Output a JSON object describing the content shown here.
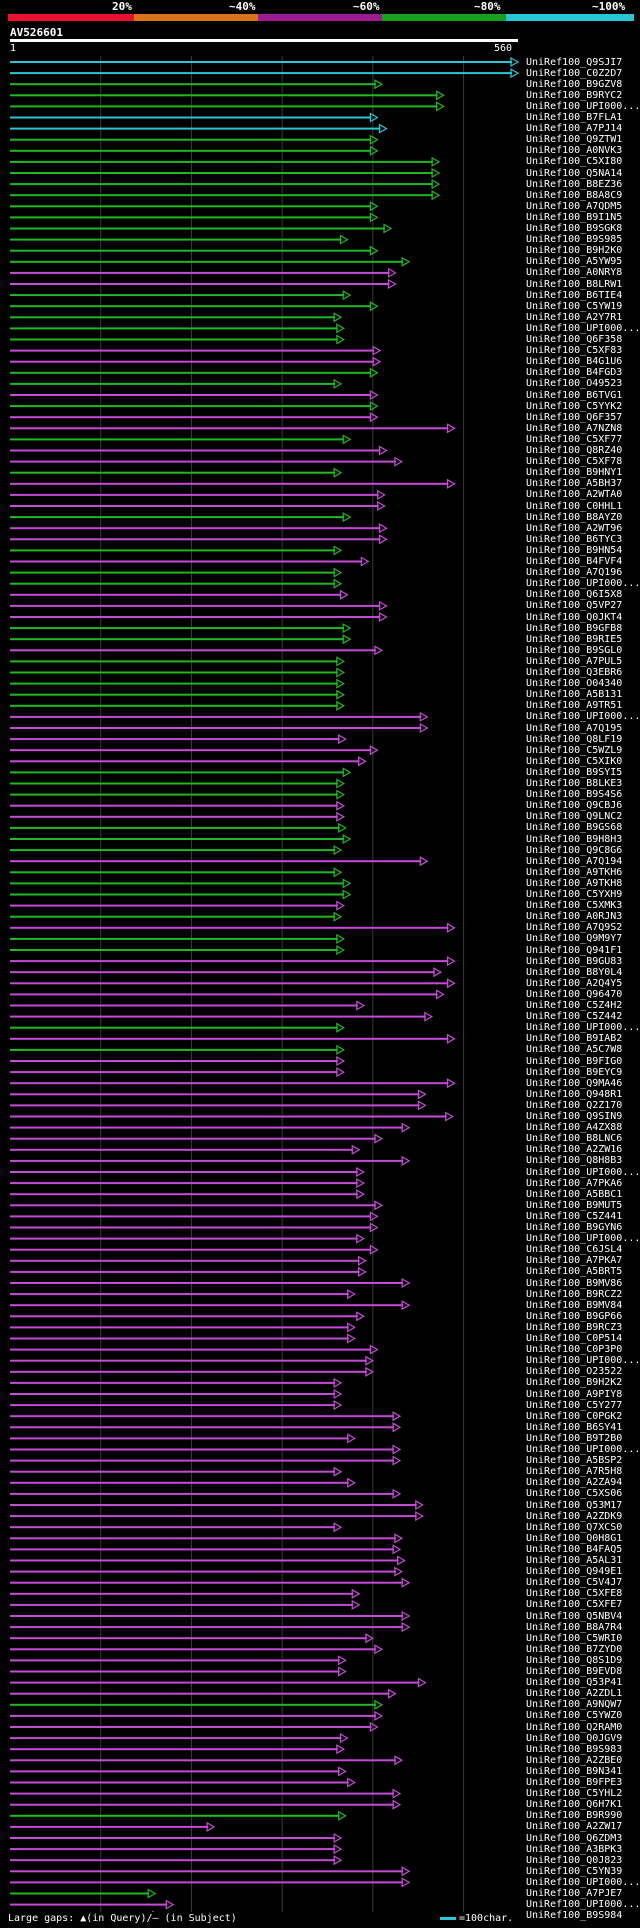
{
  "scale": {
    "labels": [
      "20%",
      "~40%",
      "~60%",
      "~80%",
      "~100%"
    ],
    "colors": [
      "#e8102c",
      "#d9741a",
      "#9b1c8f",
      "#17a01c",
      "#29c6d4"
    ]
  },
  "query": {
    "name": "AV526601",
    "start": "1",
    "end": "560"
  },
  "hits": [
    {
      "label": "UniRef100_Q9SJI7",
      "len": 560,
      "color": "cyan"
    },
    {
      "label": "UniRef100_C0Z2D7",
      "len": 560,
      "color": "cyan"
    },
    {
      "label": "UniRef100_B9GZV8",
      "len": 410,
      "color": "green"
    },
    {
      "label": "UniRef100_B9RYC2",
      "len": 478,
      "color": "green"
    },
    {
      "label": "UniRef100_UPI000...",
      "len": 478,
      "color": "green"
    },
    {
      "label": "UniRef100_B7FLA1",
      "len": 405,
      "color": "cyan"
    },
    {
      "label": "UniRef100_A7PJ14",
      "len": 415,
      "color": "cyan"
    },
    {
      "label": "UniRef100_Q9ZTW1",
      "len": 405,
      "color": "green"
    },
    {
      "label": "UniRef100_A0NVK3",
      "len": 405,
      "color": "green"
    },
    {
      "label": "UniRef100_C5XI80",
      "len": 473,
      "color": "green"
    },
    {
      "label": "UniRef100_Q5NA14",
      "len": 473,
      "color": "green"
    },
    {
      "label": "UniRef100_B8EZ36",
      "len": 473,
      "color": "green"
    },
    {
      "label": "UniRef100_B8A8C9",
      "len": 473,
      "color": "green"
    },
    {
      "label": "UniRef100_A7QDM5",
      "len": 405,
      "color": "green"
    },
    {
      "label": "UniRef100_B9I1N5",
      "len": 405,
      "color": "green"
    },
    {
      "label": "UniRef100_B9SGK8",
      "len": 420,
      "color": "green"
    },
    {
      "label": "UniRef100_B9S985",
      "len": 372,
      "color": "green"
    },
    {
      "label": "UniRef100_B9H2K0",
      "len": 405,
      "color": "green"
    },
    {
      "label": "UniRef100_A5YW95",
      "len": 440,
      "color": "green"
    },
    {
      "label": "UniRef100_A0NRY8",
      "len": 425,
      "color": "magenta"
    },
    {
      "label": "UniRef100_B8LRW1",
      "len": 425,
      "color": "magenta"
    },
    {
      "label": "UniRef100_B6TIE4",
      "len": 375,
      "color": "green"
    },
    {
      "label": "UniRef100_C5YW19",
      "len": 405,
      "color": "green"
    },
    {
      "label": "UniRef100_A2Y7R1",
      "len": 365,
      "color": "green"
    },
    {
      "label": "UniRef100_UPI000...",
      "len": 368,
      "color": "green"
    },
    {
      "label": "UniRef100_Q6F358",
      "len": 368,
      "color": "green"
    },
    {
      "label": "UniRef100_C5XF83",
      "len": 408,
      "color": "magenta"
    },
    {
      "label": "UniRef100_B4G1U6",
      "len": 408,
      "color": "magenta"
    },
    {
      "label": "UniRef100_B4FGD3",
      "len": 405,
      "color": "green"
    },
    {
      "label": "UniRef100_O49523",
      "len": 365,
      "color": "green"
    },
    {
      "label": "UniRef100_B6TVG1",
      "len": 405,
      "color": "magenta"
    },
    {
      "label": "UniRef100_C5YYK2",
      "len": 405,
      "color": "green"
    },
    {
      "label": "UniRef100_Q6F357",
      "len": 405,
      "color": "magenta"
    },
    {
      "label": "UniRef100_A7NZN8",
      "len": 490,
      "color": "magenta"
    },
    {
      "label": "UniRef100_C5XF77",
      "len": 375,
      "color": "green"
    },
    {
      "label": "UniRef100_Q8RZ40",
      "len": 415,
      "color": "magenta"
    },
    {
      "label": "UniRef100_C5XF78",
      "len": 432,
      "color": "magenta"
    },
    {
      "label": "UniRef100_B9HNY1",
      "len": 365,
      "color": "green"
    },
    {
      "label": "UniRef100_A5BH37",
      "len": 490,
      "color": "magenta"
    },
    {
      "label": "UniRef100_A2WTA0",
      "len": 413,
      "color": "magenta"
    },
    {
      "label": "UniRef100_C0HHL1",
      "len": 413,
      "color": "magenta"
    },
    {
      "label": "UniRef100_B8AYZ0",
      "len": 375,
      "color": "green"
    },
    {
      "label": "UniRef100_A2WT96",
      "len": 415,
      "color": "magenta"
    },
    {
      "label": "UniRef100_B6TYC3",
      "len": 415,
      "color": "magenta"
    },
    {
      "label": "UniRef100_B9HN54",
      "len": 365,
      "color": "green"
    },
    {
      "label": "UniRef100_B4FVF4",
      "len": 395,
      "color": "magenta"
    },
    {
      "label": "UniRef100_A7Q196",
      "len": 365,
      "color": "green"
    },
    {
      "label": "UniRef100_UPI000...",
      "len": 365,
      "color": "green"
    },
    {
      "label": "UniRef100_Q6I5X8",
      "len": 372,
      "color": "magenta"
    },
    {
      "label": "UniRef100_Q5VP27",
      "len": 415,
      "color": "magenta"
    },
    {
      "label": "UniRef100_Q0JKT4",
      "len": 415,
      "color": "magenta"
    },
    {
      "label": "UniRef100_B9GFB8",
      "len": 375,
      "color": "green"
    },
    {
      "label": "UniRef100_B9RIE5",
      "len": 375,
      "color": "green"
    },
    {
      "label": "UniRef100_B9SGL0",
      "len": 410,
      "color": "magenta"
    },
    {
      "label": "UniRef100_A7PUL5",
      "len": 368,
      "color": "green"
    },
    {
      "label": "UniRef100_Q3EBR6",
      "len": 368,
      "color": "green"
    },
    {
      "label": "UniRef100_O04340",
      "len": 368,
      "color": "green"
    },
    {
      "label": "UniRef100_A5B131",
      "len": 368,
      "color": "green"
    },
    {
      "label": "UniRef100_A9TR51",
      "len": 368,
      "color": "green"
    },
    {
      "label": "UniRef100_UPI000...",
      "len": 460,
      "color": "magenta"
    },
    {
      "label": "UniRef100_A7Q195",
      "len": 460,
      "color": "magenta"
    },
    {
      "label": "UniRef100_Q8LF19",
      "len": 370,
      "color": "magenta"
    },
    {
      "label": "UniRef100_C5WZL9",
      "len": 405,
      "color": "magenta"
    },
    {
      "label": "UniRef100_C5XIK0",
      "len": 392,
      "color": "magenta"
    },
    {
      "label": "UniRef100_B9SYI5",
      "len": 375,
      "color": "green"
    },
    {
      "label": "UniRef100_B8LKE3",
      "len": 368,
      "color": "green"
    },
    {
      "label": "UniRef100_B9S4S6",
      "len": 368,
      "color": "green"
    },
    {
      "label": "UniRef100_Q9CBJ6",
      "len": 368,
      "color": "magenta"
    },
    {
      "label": "UniRef100_Q9LNC2",
      "len": 368,
      "color": "magenta"
    },
    {
      "label": "UniRef100_B9GS68",
      "len": 370,
      "color": "green"
    },
    {
      "label": "UniRef100_B9H8H3",
      "len": 375,
      "color": "green"
    },
    {
      "label": "UniRef100_Q9C8G6",
      "len": 365,
      "color": "green"
    },
    {
      "label": "UniRef100_A7Q194",
      "len": 460,
      "color": "magenta"
    },
    {
      "label": "UniRef100_A9TKH6",
      "len": 365,
      "color": "green"
    },
    {
      "label": "UniRef100_A9TKH8",
      "len": 375,
      "color": "green"
    },
    {
      "label": "UniRef100_C5YXH9",
      "len": 375,
      "color": "green"
    },
    {
      "label": "UniRef100_C5XMK3",
      "len": 368,
      "color": "magenta"
    },
    {
      "label": "UniRef100_A0RJN3",
      "len": 365,
      "color": "green"
    },
    {
      "label": "UniRef100_A7Q9S2",
      "len": 490,
      "color": "magenta"
    },
    {
      "label": "UniRef100_Q9M9Y7",
      "len": 368,
      "color": "green"
    },
    {
      "label": "UniRef100_Q941F1",
      "len": 368,
      "color": "green"
    },
    {
      "label": "UniRef100_B9GU83",
      "len": 490,
      "color": "magenta"
    },
    {
      "label": "UniRef100_B8Y0L4",
      "len": 475,
      "color": "magenta"
    },
    {
      "label": "UniRef100_A2Q4Y5",
      "len": 490,
      "color": "magenta"
    },
    {
      "label": "UniRef100_Q96470",
      "len": 478,
      "color": "magenta"
    },
    {
      "label": "UniRef100_C5Z4H2",
      "len": 390,
      "color": "magenta"
    },
    {
      "label": "UniRef100_C5Z442",
      "len": 465,
      "color": "magenta"
    },
    {
      "label": "UniRef100_UPI000...",
      "len": 368,
      "color": "green"
    },
    {
      "label": "UniRef100_B9IAB2",
      "len": 490,
      "color": "magenta"
    },
    {
      "label": "UniRef100_A5C7W8",
      "len": 368,
      "color": "green"
    },
    {
      "label": "UniRef100_B9FIG0",
      "len": 368,
      "color": "magenta"
    },
    {
      "label": "UniRef100_B9EYC9",
      "len": 368,
      "color": "magenta"
    },
    {
      "label": "UniRef100_Q9MA46",
      "len": 490,
      "color": "magenta"
    },
    {
      "label": "UniRef100_Q948R1",
      "len": 458,
      "color": "magenta"
    },
    {
      "label": "UniRef100_Q2Z170",
      "len": 458,
      "color": "magenta"
    },
    {
      "label": "UniRef100_Q9SIN9",
      "len": 488,
      "color": "magenta"
    },
    {
      "label": "UniRef100_A4ZX88",
      "len": 440,
      "color": "magenta"
    },
    {
      "label": "UniRef100_B8LNC6",
      "len": 410,
      "color": "magenta"
    },
    {
      "label": "UniRef100_A2ZW16",
      "len": 385,
      "color": "magenta"
    },
    {
      "label": "UniRef100_Q8H8B3",
      "len": 440,
      "color": "magenta"
    },
    {
      "label": "UniRef100_UPI000...",
      "len": 390,
      "color": "magenta"
    },
    {
      "label": "UniRef100_A7PKA6",
      "len": 390,
      "color": "magenta"
    },
    {
      "label": "UniRef100_A5BBC1",
      "len": 390,
      "color": "magenta"
    },
    {
      "label": "UniRef100_B9MUT5",
      "len": 410,
      "color": "magenta"
    },
    {
      "label": "UniRef100_C5Z441",
      "len": 405,
      "color": "magenta"
    },
    {
      "label": "UniRef100_B9GYN6",
      "len": 405,
      "color": "magenta"
    },
    {
      "label": "UniRef100_UPI000...",
      "len": 390,
      "color": "magenta"
    },
    {
      "label": "UniRef100_C6JSL4",
      "len": 405,
      "color": "magenta"
    },
    {
      "label": "UniRef100_A7PKA7",
      "len": 392,
      "color": "magenta"
    },
    {
      "label": "UniRef100_A5BRT5",
      "len": 392,
      "color": "magenta"
    },
    {
      "label": "UniRef100_B9MV86",
      "len": 440,
      "color": "magenta"
    },
    {
      "label": "UniRef100_B9RCZ2",
      "len": 380,
      "color": "magenta"
    },
    {
      "label": "UniRef100_B9MV84",
      "len": 440,
      "color": "magenta"
    },
    {
      "label": "UniRef100_B9GP66",
      "len": 390,
      "color": "magenta"
    },
    {
      "label": "UniRef100_B9RCZ3",
      "len": 380,
      "color": "magenta"
    },
    {
      "label": "UniRef100_C0P514",
      "len": 380,
      "color": "magenta"
    },
    {
      "label": "UniRef100_C0P3P0",
      "len": 405,
      "color": "magenta"
    },
    {
      "label": "UniRef100_UPI000...",
      "len": 400,
      "color": "magenta"
    },
    {
      "label": "UniRef100_O23522",
      "len": 400,
      "color": "magenta"
    },
    {
      "label": "UniRef100_B9H2K2",
      "len": 365,
      "color": "magenta"
    },
    {
      "label": "UniRef100_A9PIY8",
      "len": 365,
      "color": "magenta"
    },
    {
      "label": "UniRef100_C5Y277",
      "len": 365,
      "color": "magenta"
    },
    {
      "label": "UniRef100_C0PGK2",
      "len": 430,
      "color": "magenta"
    },
    {
      "label": "UniRef100_B6SY41",
      "len": 430,
      "color": "magenta"
    },
    {
      "label": "UniRef100_B9T2B0",
      "len": 380,
      "color": "magenta"
    },
    {
      "label": "UniRef100_UPI000...",
      "len": 430,
      "color": "magenta"
    },
    {
      "label": "UniRef100_A5BSP2",
      "len": 430,
      "color": "magenta"
    },
    {
      "label": "UniRef100_A7R5H8",
      "len": 365,
      "color": "magenta"
    },
    {
      "label": "UniRef100_A2ZA94",
      "len": 380,
      "color": "magenta"
    },
    {
      "label": "UniRef100_C5XS06",
      "len": 430,
      "color": "magenta"
    },
    {
      "label": "UniRef100_Q53M17",
      "len": 455,
      "color": "magenta"
    },
    {
      "label": "UniRef100_A2ZDK9",
      "len": 455,
      "color": "magenta"
    },
    {
      "label": "UniRef100_Q7XCS0",
      "len": 365,
      "color": "magenta"
    },
    {
      "label": "UniRef100_Q0H8G1",
      "len": 432,
      "color": "magenta"
    },
    {
      "label": "UniRef100_B4FAQ5",
      "len": 430,
      "color": "magenta"
    },
    {
      "label": "UniRef100_A5AL31",
      "len": 435,
      "color": "magenta"
    },
    {
      "label": "UniRef100_Q949E1",
      "len": 432,
      "color": "magenta"
    },
    {
      "label": "UniRef100_C5V4J7",
      "len": 440,
      "color": "magenta"
    },
    {
      "label": "UniRef100_C5XFE8",
      "len": 385,
      "color": "magenta"
    },
    {
      "label": "UniRef100_C5XFE7",
      "len": 385,
      "color": "magenta"
    },
    {
      "label": "UniRef100_Q5NBV4",
      "len": 440,
      "color": "magenta"
    },
    {
      "label": "UniRef100_B8A7R4",
      "len": 440,
      "color": "magenta"
    },
    {
      "label": "UniRef100_C5WRI0",
      "len": 400,
      "color": "magenta"
    },
    {
      "label": "UniRef100_B7ZYD0",
      "len": 410,
      "color": "magenta"
    },
    {
      "label": "UniRef100_Q8S1D9",
      "len": 370,
      "color": "magenta"
    },
    {
      "label": "UniRef100_B9EVD8",
      "len": 370,
      "color": "magenta"
    },
    {
      "label": "UniRef100_Q53P41",
      "len": 458,
      "color": "magenta"
    },
    {
      "label": "UniRef100_A2ZDL1",
      "len": 425,
      "color": "magenta"
    },
    {
      "label": "UniRef100_A9NQW7",
      "len": 410,
      "color": "green"
    },
    {
      "label": "UniRef100_C5YWZ0",
      "len": 410,
      "color": "magenta"
    },
    {
      "label": "UniRef100_Q2RAM0",
      "len": 405,
      "color": "magenta"
    },
    {
      "label": "UniRef100_Q0JGV9",
      "len": 372,
      "color": "magenta"
    },
    {
      "label": "UniRef100_B9S983",
      "len": 368,
      "color": "magenta"
    },
    {
      "label": "UniRef100_A2ZBE0",
      "len": 432,
      "color": "magenta"
    },
    {
      "label": "UniRef100_B9N341",
      "len": 370,
      "color": "magenta"
    },
    {
      "label": "UniRef100_B9FPE3",
      "len": 380,
      "color": "magenta"
    },
    {
      "label": "UniRef100_C5YHL2",
      "len": 430,
      "color": "magenta"
    },
    {
      "label": "UniRef100_Q6H7K1",
      "len": 430,
      "color": "magenta"
    },
    {
      "label": "UniRef100_B9R990",
      "len": 370,
      "color": "green"
    },
    {
      "label": "UniRef100_A2ZW17",
      "len": 225,
      "color": "magenta"
    },
    {
      "label": "UniRef100_Q6ZDM3",
      "len": 365,
      "color": "magenta"
    },
    {
      "label": "UniRef100_A3BPK3",
      "len": 365,
      "color": "magenta"
    },
    {
      "label": "UniRef100_Q0J823",
      "len": 365,
      "color": "magenta"
    },
    {
      "label": "UniRef100_C5YN39",
      "len": 440,
      "color": "magenta"
    },
    {
      "label": "UniRef100_UPI000...",
      "len": 440,
      "color": "magenta"
    },
    {
      "label": "UniRef100_A7PJE7",
      "len": 160,
      "color": "green"
    },
    {
      "label": "UniRef100_UPI000...",
      "len": 180,
      "color": "magenta"
    },
    {
      "label": "UniRef100_B9S984",
      "len": 165,
      "color": "magenta"
    }
  ],
  "footer": {
    "gap_legend": "Large gaps: ▲(in Query)/– (in Subject)",
    "scale_legend": "=100char."
  }
}
